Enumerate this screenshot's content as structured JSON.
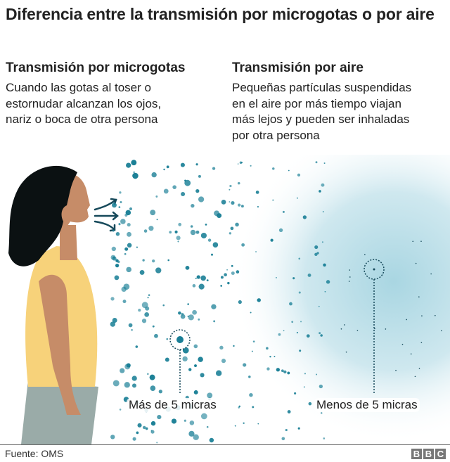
{
  "title": "Diferencia entre la transmisión por microgotas o por aire",
  "left": {
    "heading": "Transmisión por microgotas",
    "lines": [
      "Cuando las gotas al toser o",
      "estornudar alcanzan los ojos,",
      "nariz o boca de otra persona"
    ]
  },
  "right": {
    "heading": "Transmisión por aire",
    "lines": [
      "Pequeñas partículas suspendidas",
      "en el aire por más tiempo viajan",
      "más lejos y pueden ser inhaladas",
      "por otra persona"
    ]
  },
  "labels": {
    "large": "Más de 5 micras",
    "small": "Menos de 5 micras"
  },
  "footer": {
    "source": "Fuente: OMS",
    "logo": [
      "B",
      "B",
      "C"
    ]
  },
  "colors": {
    "droplet": "#1a7f96",
    "cloud": "#a9d6e2",
    "hair": "#0b1112",
    "skin": "#c68c68",
    "shirt": "#f7d27a",
    "pants": "#9aaba8"
  }
}
